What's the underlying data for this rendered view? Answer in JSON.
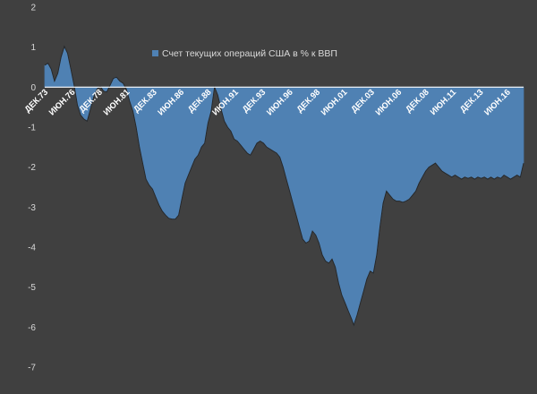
{
  "chart_data": {
    "type": "area",
    "legend_label": "Счет текущих операций США в % к ВВП",
    "legend_position": "top-center",
    "ylim": [
      -7,
      2
    ],
    "y_ticks": [
      2,
      1,
      0,
      -1,
      -2,
      -3,
      -4,
      -5,
      -6,
      -7
    ],
    "xlim": [
      1973.9,
      2017.9
    ],
    "x_ticks": [
      {
        "label": "ДЕК.73",
        "x": 1973.9
      },
      {
        "label": "ИЮН.76",
        "x": 1976.4
      },
      {
        "label": "ДЕК.78",
        "x": 1978.9
      },
      {
        "label": "ИЮН.81",
        "x": 1981.4
      },
      {
        "label": "ДЕК.83",
        "x": 1983.9
      },
      {
        "label": "ИЮН.86",
        "x": 1986.4
      },
      {
        "label": "ДЕК.88",
        "x": 1988.9
      },
      {
        "label": "ИЮН.91",
        "x": 1991.4
      },
      {
        "label": "ДЕК.93",
        "x": 1993.9
      },
      {
        "label": "ИЮН.96",
        "x": 1996.4
      },
      {
        "label": "ДЕК.98",
        "x": 1998.9
      },
      {
        "label": "ИЮН.01",
        "x": 2001.4
      },
      {
        "label": "ДЕК.03",
        "x": 2003.9
      },
      {
        "label": "ИЮН.06",
        "x": 2006.4
      },
      {
        "label": "ДЕК.08",
        "x": 2008.9
      },
      {
        "label": "ИЮН.11",
        "x": 2011.4
      },
      {
        "label": "ДЕК.13",
        "x": 2013.9
      },
      {
        "label": "ИЮН.16",
        "x": 2016.4
      }
    ],
    "grid": false,
    "colors": {
      "background": "#404040",
      "area_fill": "#4f81b3",
      "area_line": "#4a7aac",
      "zero_line": "#ffffff",
      "baseline_stroke": "#262626",
      "axis_label": "#d9d9d9",
      "tick_label": "#ffffff"
    },
    "series": [
      {
        "name": "Счет текущих операций США в % к ВВП",
        "points": [
          [
            1973.9,
            0.55
          ],
          [
            1974.2,
            0.6
          ],
          [
            1974.5,
            0.45
          ],
          [
            1974.8,
            0.15
          ],
          [
            1975.1,
            0.35
          ],
          [
            1975.4,
            0.75
          ],
          [
            1975.7,
            1.02
          ],
          [
            1976.0,
            0.85
          ],
          [
            1976.3,
            0.45
          ],
          [
            1976.6,
            0.05
          ],
          [
            1976.9,
            -0.45
          ],
          [
            1977.2,
            -0.7
          ],
          [
            1977.5,
            -0.8
          ],
          [
            1977.8,
            -0.85
          ],
          [
            1978.1,
            -0.55
          ],
          [
            1978.4,
            -0.25
          ],
          [
            1978.7,
            -0.05
          ],
          [
            1979.0,
            0.02
          ],
          [
            1979.3,
            -0.1
          ],
          [
            1979.6,
            -0.12
          ],
          [
            1979.9,
            0.05
          ],
          [
            1980.2,
            0.22
          ],
          [
            1980.5,
            0.25
          ],
          [
            1980.8,
            0.15
          ],
          [
            1981.1,
            0.1
          ],
          [
            1981.4,
            -0.05
          ],
          [
            1981.7,
            -0.35
          ],
          [
            1982.0,
            -0.6
          ],
          [
            1982.3,
            -1.0
          ],
          [
            1982.6,
            -1.5
          ],
          [
            1982.9,
            -1.9
          ],
          [
            1983.2,
            -2.3
          ],
          [
            1983.5,
            -2.45
          ],
          [
            1983.8,
            -2.55
          ],
          [
            1984.1,
            -2.75
          ],
          [
            1984.4,
            -2.95
          ],
          [
            1984.7,
            -3.1
          ],
          [
            1985.0,
            -3.2
          ],
          [
            1985.3,
            -3.28
          ],
          [
            1985.6,
            -3.3
          ],
          [
            1985.9,
            -3.3
          ],
          [
            1986.2,
            -3.2
          ],
          [
            1986.5,
            -2.8
          ],
          [
            1986.8,
            -2.4
          ],
          [
            1987.1,
            -2.2
          ],
          [
            1987.4,
            -2.0
          ],
          [
            1987.7,
            -1.8
          ],
          [
            1988.0,
            -1.7
          ],
          [
            1988.3,
            -1.5
          ],
          [
            1988.6,
            -1.4
          ],
          [
            1988.9,
            -0.9
          ],
          [
            1989.2,
            -0.6
          ],
          [
            1989.5,
            0.0
          ],
          [
            1989.8,
            -0.2
          ],
          [
            1990.1,
            -0.55
          ],
          [
            1990.4,
            -0.85
          ],
          [
            1990.7,
            -1.0
          ],
          [
            1991.0,
            -1.1
          ],
          [
            1991.3,
            -1.3
          ],
          [
            1991.6,
            -1.35
          ],
          [
            1991.9,
            -1.45
          ],
          [
            1992.2,
            -1.55
          ],
          [
            1992.5,
            -1.65
          ],
          [
            1992.8,
            -1.7
          ],
          [
            1993.1,
            -1.55
          ],
          [
            1993.4,
            -1.4
          ],
          [
            1993.7,
            -1.35
          ],
          [
            1994.0,
            -1.4
          ],
          [
            1994.3,
            -1.5
          ],
          [
            1994.6,
            -1.55
          ],
          [
            1994.9,
            -1.6
          ],
          [
            1995.2,
            -1.65
          ],
          [
            1995.5,
            -1.75
          ],
          [
            1995.8,
            -2.0
          ],
          [
            1996.1,
            -2.3
          ],
          [
            1996.4,
            -2.6
          ],
          [
            1996.7,
            -2.9
          ],
          [
            1997.0,
            -3.2
          ],
          [
            1997.3,
            -3.5
          ],
          [
            1997.6,
            -3.8
          ],
          [
            1997.9,
            -3.9
          ],
          [
            1998.2,
            -3.85
          ],
          [
            1998.5,
            -3.6
          ],
          [
            1998.8,
            -3.7
          ],
          [
            1999.1,
            -3.9
          ],
          [
            1999.4,
            -4.2
          ],
          [
            1999.7,
            -4.35
          ],
          [
            2000.0,
            -4.4
          ],
          [
            2000.3,
            -4.3
          ],
          [
            2000.6,
            -4.5
          ],
          [
            2000.9,
            -4.9
          ],
          [
            2001.2,
            -5.2
          ],
          [
            2001.5,
            -5.4
          ],
          [
            2001.8,
            -5.6
          ],
          [
            2002.1,
            -5.8
          ],
          [
            2002.3,
            -5.95
          ],
          [
            2002.6,
            -5.7
          ],
          [
            2002.9,
            -5.4
          ],
          [
            2003.2,
            -5.1
          ],
          [
            2003.5,
            -4.8
          ],
          [
            2003.8,
            -4.6
          ],
          [
            2004.1,
            -4.65
          ],
          [
            2004.4,
            -4.2
          ],
          [
            2004.7,
            -3.5
          ],
          [
            2005.0,
            -2.9
          ],
          [
            2005.3,
            -2.6
          ],
          [
            2005.6,
            -2.7
          ],
          [
            2005.9,
            -2.8
          ],
          [
            2006.2,
            -2.85
          ],
          [
            2006.5,
            -2.85
          ],
          [
            2006.8,
            -2.88
          ],
          [
            2007.1,
            -2.85
          ],
          [
            2007.4,
            -2.8
          ],
          [
            2007.7,
            -2.7
          ],
          [
            2008.0,
            -2.6
          ],
          [
            2008.3,
            -2.4
          ],
          [
            2008.6,
            -2.25
          ],
          [
            2008.9,
            -2.1
          ],
          [
            2009.2,
            -2.0
          ],
          [
            2009.5,
            -1.95
          ],
          [
            2009.8,
            -1.9
          ],
          [
            2010.1,
            -2.0
          ],
          [
            2010.4,
            -2.1
          ],
          [
            2010.7,
            -2.15
          ],
          [
            2011.0,
            -2.2
          ],
          [
            2011.3,
            -2.25
          ],
          [
            2011.6,
            -2.2
          ],
          [
            2011.9,
            -2.25
          ],
          [
            2012.2,
            -2.3
          ],
          [
            2012.5,
            -2.25
          ],
          [
            2012.8,
            -2.28
          ],
          [
            2013.1,
            -2.25
          ],
          [
            2013.4,
            -2.3
          ],
          [
            2013.7,
            -2.25
          ],
          [
            2014.0,
            -2.28
          ],
          [
            2014.3,
            -2.25
          ],
          [
            2014.6,
            -2.3
          ],
          [
            2014.9,
            -2.25
          ],
          [
            2015.2,
            -2.3
          ],
          [
            2015.5,
            -2.25
          ],
          [
            2015.8,
            -2.28
          ],
          [
            2016.1,
            -2.2
          ],
          [
            2016.4,
            -2.25
          ],
          [
            2016.7,
            -2.3
          ],
          [
            2017.0,
            -2.25
          ],
          [
            2017.3,
            -2.2
          ],
          [
            2017.6,
            -2.25
          ],
          [
            2017.9,
            -1.9
          ]
        ]
      }
    ]
  }
}
